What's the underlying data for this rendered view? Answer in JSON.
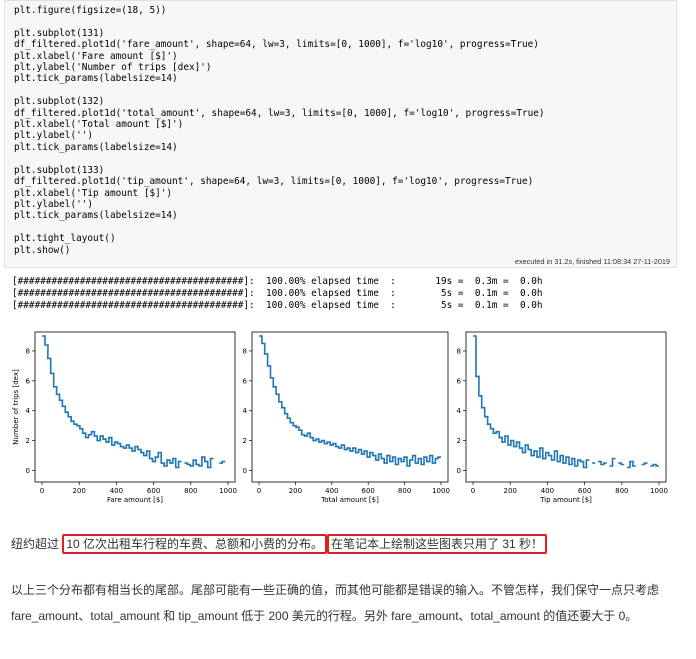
{
  "code": {
    "l1": "plt.figure(figsize=(18, 5))",
    "l3": "plt.subplot(131)",
    "l4": "df_filtered.plot1d('fare_amount', shape=64, lw=3, limits=[0, 1000], f='log10', progress=True)",
    "l5": "plt.xlabel('Fare amount [$]')",
    "l6": "plt.ylabel('Number of trips [dex]')",
    "l7": "plt.tick_params(labelsize=14)",
    "l9": "plt.subplot(132)",
    "l10": "df_filtered.plot1d('total_amount', shape=64, lw=3, limits=[0, 1000], f='log10', progress=True)",
    "l11": "plt.xlabel('Total amount [$]')",
    "l12": "plt.ylabel('')",
    "l13": "plt.tick_params(labelsize=14)",
    "l15": "plt.subplot(133)",
    "l16": "df_filtered.plot1d('tip_amount', shape=64, lw=3, limits=[0, 1000], f='log10', progress=True)",
    "l17": "plt.xlabel('Tip amount [$]')",
    "l18": "plt.ylabel('')",
    "l19": "plt.tick_params(labelsize=14)",
    "l21": "plt.tight_layout()",
    "l22": "plt.show()"
  },
  "execution_note": "executed in 31.2s, finished 11:08:34 27-11-2019",
  "progress_lines": [
    "[########################################]:  100.00% elapsed time  :       19s =  0.3m =  0.0h",
    "[########################################]:  100.00% elapsed time  :        5s =  0.1m =  0.0h",
    "[########################################]:  100.00% elapsed time  :        5s =  0.1m =  0.0h"
  ],
  "chart_data": [
    {
      "type": "line",
      "xlabel": "Fare amount [$]",
      "ylabel": "Number of trips [dex]",
      "xlim": [
        0,
        1000
      ],
      "ylim": [
        -0.5,
        9
      ],
      "xticks": [
        0,
        200,
        400,
        600,
        800,
        1000
      ],
      "yticks": [
        0,
        2,
        4,
        6,
        8
      ],
      "x": [
        0,
        16,
        31,
        47,
        63,
        78,
        94,
        109,
        125,
        141,
        156,
        172,
        188,
        203,
        219,
        234,
        250,
        266,
        281,
        297,
        313,
        328,
        344,
        359,
        375,
        391,
        406,
        422,
        438,
        453,
        469,
        484,
        500,
        516,
        531,
        547,
        563,
        578,
        594,
        609,
        625,
        641,
        656,
        672,
        688,
        703,
        719,
        734,
        750,
        766,
        781,
        797,
        813,
        828,
        844,
        859,
        875,
        891,
        906,
        922,
        938,
        953,
        969,
        984
      ],
      "values": [
        9,
        8.4,
        7.5,
        6.5,
        5.6,
        5.1,
        4.7,
        4.3,
        3.9,
        3.6,
        3.3,
        3.1,
        3.0,
        2.8,
        2.5,
        2.2,
        2.4,
        2.6,
        2.3,
        2.0,
        2.3,
        2.1,
        1.9,
        2.2,
        1.7,
        1.9,
        1.8,
        1.6,
        1.5,
        1.7,
        1.5,
        1.3,
        1.6,
        1.4,
        1.2,
        1.0,
        1.3,
        0.8,
        0.6,
        0.9,
        1.2,
        0.5,
        0.3,
        0.7,
        0.5,
        0.8,
        0.2,
        0.6,
        null,
        0.5,
        0.4,
        0.3,
        0.7,
        0.4,
        0.3,
        0.9,
        0.6,
        0.2,
        0.8,
        null,
        null,
        0.5,
        0.6,
        null
      ]
    },
    {
      "type": "line",
      "xlabel": "Total amount [$]",
      "ylabel": "",
      "xlim": [
        0,
        1000
      ],
      "ylim": [
        -0.5,
        9
      ],
      "xticks": [
        0,
        200,
        400,
        600,
        800,
        1000
      ],
      "yticks": [
        0,
        2,
        4,
        6,
        8
      ],
      "x": [
        0,
        16,
        31,
        47,
        63,
        78,
        94,
        109,
        125,
        141,
        156,
        172,
        188,
        203,
        219,
        234,
        250,
        266,
        281,
        297,
        313,
        328,
        344,
        359,
        375,
        391,
        406,
        422,
        438,
        453,
        469,
        484,
        500,
        516,
        531,
        547,
        563,
        578,
        594,
        609,
        625,
        641,
        656,
        672,
        688,
        703,
        719,
        734,
        750,
        766,
        781,
        797,
        813,
        828,
        844,
        859,
        875,
        891,
        906,
        922,
        938,
        953,
        969,
        984
      ],
      "values": [
        9,
        8.5,
        7.8,
        7.0,
        6.2,
        5.6,
        5.1,
        4.6,
        4.2,
        3.8,
        3.5,
        3.2,
        3.0,
        2.9,
        2.7,
        2.4,
        2.3,
        2.5,
        2.2,
        2.0,
        2.1,
        1.9,
        2.0,
        1.8,
        1.9,
        1.7,
        1.8,
        1.6,
        1.5,
        1.7,
        1.4,
        1.5,
        1.3,
        1.5,
        1.2,
        1.4,
        1.1,
        1.3,
        0.9,
        1.2,
        1.0,
        0.7,
        1.1,
        0.8,
        0.5,
        1.0,
        0.6,
        0.9,
        0.4,
        0.8,
        0.6,
        0.9,
        0.3,
        0.7,
        1.0,
        0.5,
        0.8,
        0.4,
        0.9,
        0.6,
        1.0,
        0.5,
        0.8,
        0.9
      ]
    },
    {
      "type": "line",
      "xlabel": "Tip amount [$]",
      "ylabel": "",
      "xlim": [
        0,
        1000
      ],
      "ylim": [
        -0.5,
        9
      ],
      "xticks": [
        0,
        200,
        400,
        600,
        800,
        1000
      ],
      "yticks": [
        0,
        2,
        4,
        6,
        8
      ],
      "x": [
        0,
        16,
        31,
        47,
        63,
        78,
        94,
        109,
        125,
        141,
        156,
        172,
        188,
        203,
        219,
        234,
        250,
        266,
        281,
        297,
        313,
        328,
        344,
        359,
        375,
        391,
        406,
        422,
        438,
        453,
        469,
        484,
        500,
        516,
        531,
        547,
        563,
        578,
        594,
        609,
        625,
        641,
        656,
        672,
        688,
        703,
        719,
        734,
        750,
        766,
        781,
        797,
        813,
        828,
        844,
        859,
        875,
        891,
        906,
        922,
        938,
        953,
        969,
        984
      ],
      "values": [
        9,
        6.3,
        5.0,
        4.2,
        3.6,
        3.1,
        2.8,
        2.5,
        2.6,
        2.2,
        1.9,
        2.3,
        1.7,
        2.0,
        1.6,
        1.9,
        1.5,
        1.2,
        1.7,
        1.4,
        1.0,
        1.3,
        0.9,
        1.5,
        0.8,
        1.2,
        1.0,
        0.7,
        1.3,
        0.6,
        1.0,
        0.5,
        0.9,
        0.4,
        0.8,
        0.3,
        0.7,
        0.6,
        0.2,
        0.7,
        null,
        0.5,
        null,
        0.6,
        0.4,
        0.5,
        null,
        0.3,
        0.8,
        null,
        0.5,
        0.4,
        null,
        0.2,
        0.6,
        0.3,
        null,
        null,
        0.4,
        0.5,
        null,
        0.3,
        0.4,
        0.3
      ]
    }
  ],
  "para1": {
    "before": "纽约超过 ",
    "box1": "10 亿次出租车行程的车费、总额和小费的分布。",
    "box2": "在笔记本上绘制这些图表只用了 31 秒！"
  },
  "para2": "以上三个分布都有相当长的尾部。尾部可能有一些正确的值，而其他可能都是错误的输入。不管怎样，我们保守一点只考虑 fare_amount、total_amount 和 tip_amount 低于 200 美元的行程。另外 fare_amount、total_amount 的值还要大于 0。",
  "colors": {
    "line": "#1f77b4",
    "highlight_box": "#e02020",
    "code_bg": "#f7f7f7"
  }
}
